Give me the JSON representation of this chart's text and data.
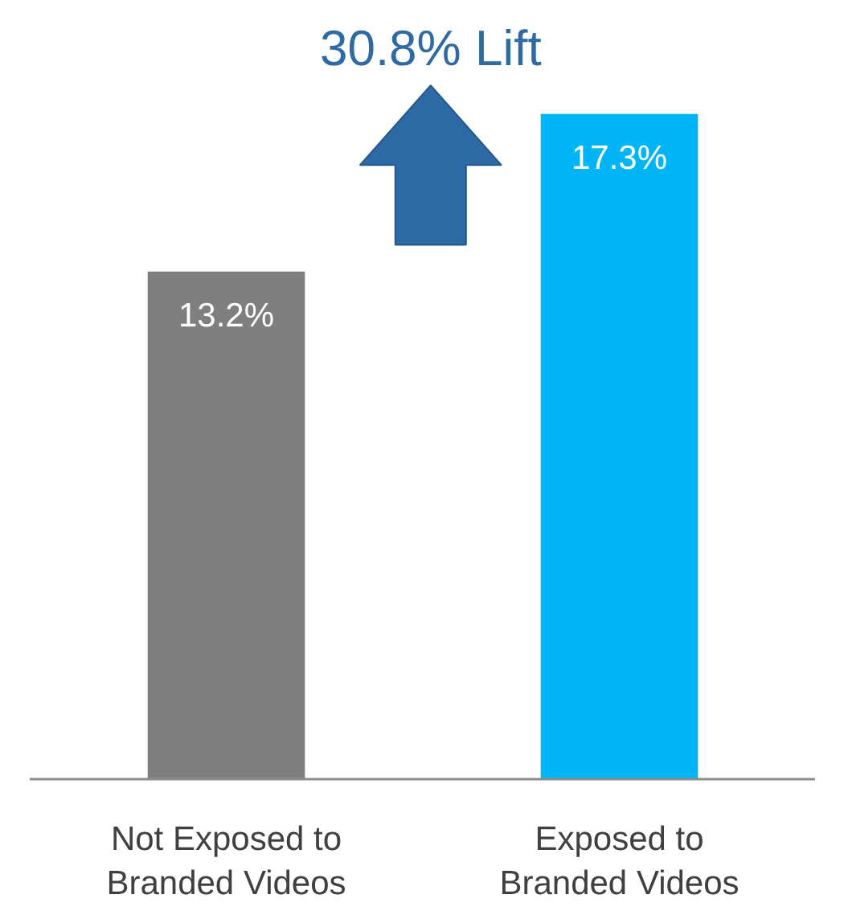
{
  "chart_data": {
    "type": "bar",
    "categories": [
      "Not Exposed to\nBranded Videos",
      "Exposed to\nBranded Videos"
    ],
    "values": [
      13.2,
      17.3
    ],
    "colors": [
      "#7f7f7f",
      "#00b5f5"
    ],
    "value_labels": [
      "13.2%",
      "17.3%"
    ],
    "annotations": [
      "30.8% Lift"
    ],
    "grid": false
  }
}
